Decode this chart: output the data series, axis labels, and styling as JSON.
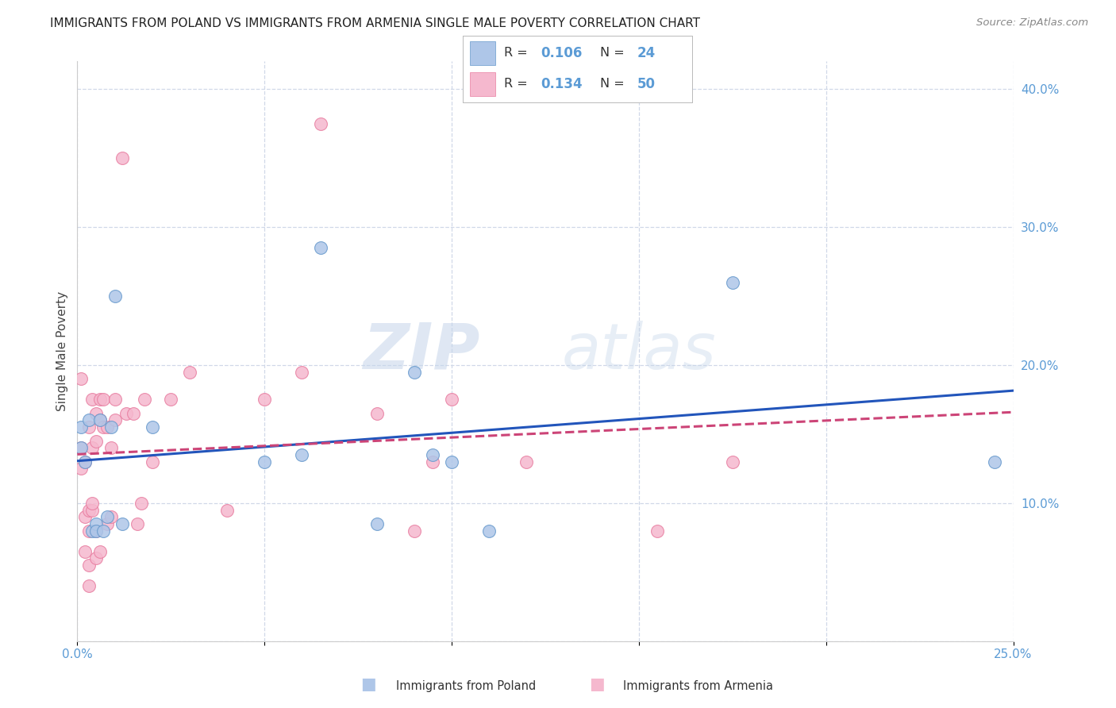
{
  "title": "IMMIGRANTS FROM POLAND VS IMMIGRANTS FROM ARMENIA SINGLE MALE POVERTY CORRELATION CHART",
  "source": "Source: ZipAtlas.com",
  "ylabel": "Single Male Poverty",
  "xlim": [
    0.0,
    0.25
  ],
  "ylim": [
    0.0,
    0.42
  ],
  "xticks": [
    0.0,
    0.05,
    0.1,
    0.15,
    0.2,
    0.25
  ],
  "xticklabels": [
    "0.0%",
    "",
    "",
    "",
    "",
    "25.0%"
  ],
  "yticks_right": [
    0.1,
    0.2,
    0.3,
    0.4
  ],
  "yticklabels_right": [
    "10.0%",
    "20.0%",
    "30.0%",
    "40.0%"
  ],
  "grid_color": "#d0d8e8",
  "background_color": "#ffffff",
  "poland_color": "#aec6e8",
  "armenia_color": "#f5b8ce",
  "poland_edge_color": "#6699cc",
  "armenia_edge_color": "#e87da0",
  "trend_poland_color": "#2255bb",
  "trend_armenia_color": "#cc4477",
  "poland_R": "0.106",
  "poland_N": "24",
  "armenia_R": "0.134",
  "armenia_N": "50",
  "watermark_zip": "ZIP",
  "watermark_atlas": "atlas",
  "legend_poland": "Immigrants from Poland",
  "legend_armenia": "Immigrants from Armenia",
  "tick_color": "#5b9bd5",
  "poland_x": [
    0.001,
    0.001,
    0.002,
    0.003,
    0.004,
    0.005,
    0.005,
    0.006,
    0.007,
    0.008,
    0.009,
    0.01,
    0.012,
    0.02,
    0.05,
    0.06,
    0.065,
    0.08,
    0.09,
    0.095,
    0.1,
    0.11,
    0.175,
    0.245
  ],
  "poland_y": [
    0.14,
    0.155,
    0.13,
    0.16,
    0.08,
    0.085,
    0.08,
    0.16,
    0.08,
    0.09,
    0.155,
    0.25,
    0.085,
    0.155,
    0.13,
    0.135,
    0.285,
    0.085,
    0.195,
    0.135,
    0.13,
    0.08,
    0.26,
    0.13
  ],
  "armenia_x": [
    0.001,
    0.001,
    0.001,
    0.002,
    0.002,
    0.002,
    0.003,
    0.003,
    0.003,
    0.003,
    0.003,
    0.004,
    0.004,
    0.004,
    0.004,
    0.005,
    0.005,
    0.005,
    0.005,
    0.006,
    0.006,
    0.006,
    0.007,
    0.007,
    0.008,
    0.008,
    0.009,
    0.009,
    0.01,
    0.01,
    0.012,
    0.013,
    0.015,
    0.016,
    0.017,
    0.018,
    0.02,
    0.025,
    0.03,
    0.04,
    0.05,
    0.06,
    0.065,
    0.08,
    0.09,
    0.095,
    0.1,
    0.12,
    0.155,
    0.175
  ],
  "armenia_y": [
    0.125,
    0.14,
    0.19,
    0.065,
    0.09,
    0.13,
    0.04,
    0.055,
    0.08,
    0.095,
    0.155,
    0.095,
    0.1,
    0.14,
    0.175,
    0.06,
    0.08,
    0.145,
    0.165,
    0.065,
    0.16,
    0.175,
    0.155,
    0.175,
    0.085,
    0.155,
    0.09,
    0.14,
    0.16,
    0.175,
    0.35,
    0.165,
    0.165,
    0.085,
    0.1,
    0.175,
    0.13,
    0.175,
    0.195,
    0.095,
    0.175,
    0.195,
    0.375,
    0.165,
    0.08,
    0.13,
    0.175,
    0.13,
    0.08,
    0.13
  ],
  "marker_size": 130
}
